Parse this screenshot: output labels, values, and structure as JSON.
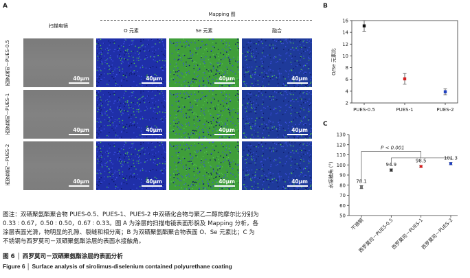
{
  "panelA": {
    "letter": "A",
    "mapping_header": "Mapping 图",
    "col_sem": "扫描电镜",
    "col_o": "O 元素",
    "col_se": "Se 元素",
    "col_merge": "融合",
    "rows": [
      "西罗莫司－PUES-0.5",
      "西罗莫司－PUES-1",
      "西罗莫司－PUES-2"
    ],
    "scale_label": "40μm",
    "colors": {
      "o": "#1f2fa8",
      "se": "#3f9e3a",
      "sem": "#808080"
    }
  },
  "panelB": {
    "letter": "B",
    "chart_data": {
      "type": "scatter",
      "categories": [
        "PUES-0.5",
        "PUES-1",
        "PUES-2"
      ],
      "values": [
        15.1,
        6.1,
        3.9
      ],
      "errors": [
        0.9,
        0.9,
        0.5
      ],
      "colors": [
        "#111111",
        "#d42020",
        "#2040c0"
      ],
      "ylabel": "O/Se 元素比",
      "ylim": [
        2,
        16
      ],
      "yticks": [
        2,
        4,
        6,
        8,
        10,
        12,
        14,
        16
      ]
    }
  },
  "panelC": {
    "letter": "C",
    "chart_data": {
      "type": "scatter",
      "categories": [
        "不锈钢",
        "西罗莫司－PUES-0.5",
        "西罗莫司－PUES-1",
        "西罗莫司－PUES-2"
      ],
      "values": [
        78.1,
        94.9,
        98.5,
        101.3
      ],
      "value_labels": [
        "78.1",
        "94.9",
        "98.5",
        "101.3"
      ],
      "errors": [
        1.5,
        1.2,
        1.0,
        1.2
      ],
      "colors": [
        "#777777",
        "#333333",
        "#d42020",
        "#2040c0"
      ],
      "ylabel": "水接触角 (°)",
      "ylim": [
        50,
        130
      ],
      "yticks": [
        50,
        60,
        70,
        80,
        90,
        100,
        110,
        120,
        130
      ],
      "annotation": "P < 0.001"
    }
  },
  "caption": {
    "note_line1": "图注：双硒聚氨酯聚合物 PUES-0.5、PUES-1、PUES-2 中双硒化合物与聚乙二醇的摩尔比分别为",
    "note_line2": "0.33 ∶ 0.67，0.50 ∶ 0.50，0.67 ∶ 0.33。图 A 为涂层的扫描电镜表面形貌及 Mapping 分析，各",
    "note_line3": "涂层表面光滑，物明显的孔隙、裂缝和相分离；B 为双硒聚氨酯聚合物表面 O、Se 元素比；C 为",
    "note_line4": "不锈钢与西罗莫司－双硒聚氨酯涂层的表面水接触角。",
    "fig_cn": "图 6 │ 西罗莫司－双硒聚氨酯涂层的表面分析",
    "fig_en": "Figure 6 │ Surface analysis of sirolimus-diselenium contained polyurethane coating"
  }
}
